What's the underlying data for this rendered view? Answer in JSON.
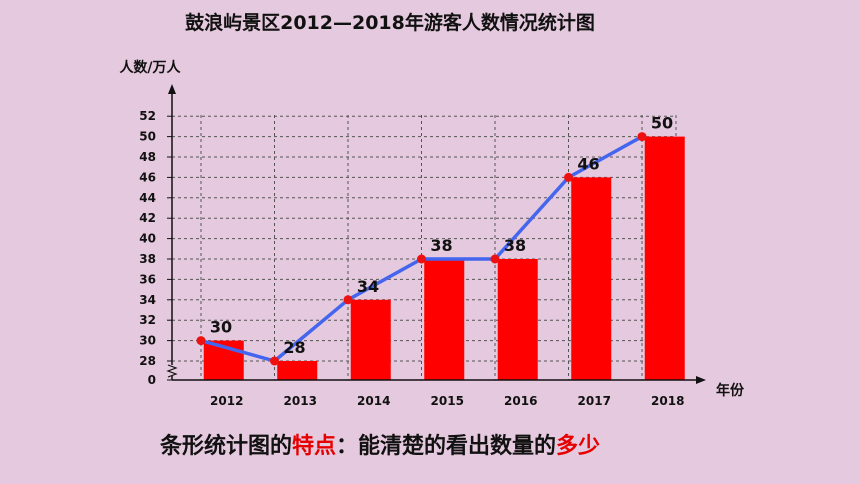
{
  "caption": {
    "part1": "条形统计图的",
    "highlight1": "特点",
    "part2": "：能清楚的看出数量的",
    "highlight2": "多少"
  },
  "colors": {
    "bar": "#ff0000",
    "line": "#4466ee",
    "point": "#ee1111",
    "highlight": "#e60000"
  },
  "chart_data": {
    "type": "bar",
    "title": "鼓浪屿景区2012—2018年游客人数情况统计图",
    "xlabel": "年份",
    "ylabel": "人数/万人",
    "categories": [
      "2012",
      "2013",
      "2014",
      "2015",
      "2016",
      "2017",
      "2018"
    ],
    "values": [
      30,
      28,
      34,
      38,
      38,
      46,
      50
    ],
    "data_labels": [
      "30",
      "28",
      "34",
      "38",
      "38",
      "46",
      "50"
    ],
    "overlay": "line",
    "yticks": [
      0,
      28,
      30,
      32,
      34,
      36,
      38,
      40,
      42,
      44,
      46,
      48,
      50,
      52
    ],
    "y_axis_break": true,
    "ylim": [
      26,
      52
    ],
    "grid": true,
    "legend": "none"
  }
}
